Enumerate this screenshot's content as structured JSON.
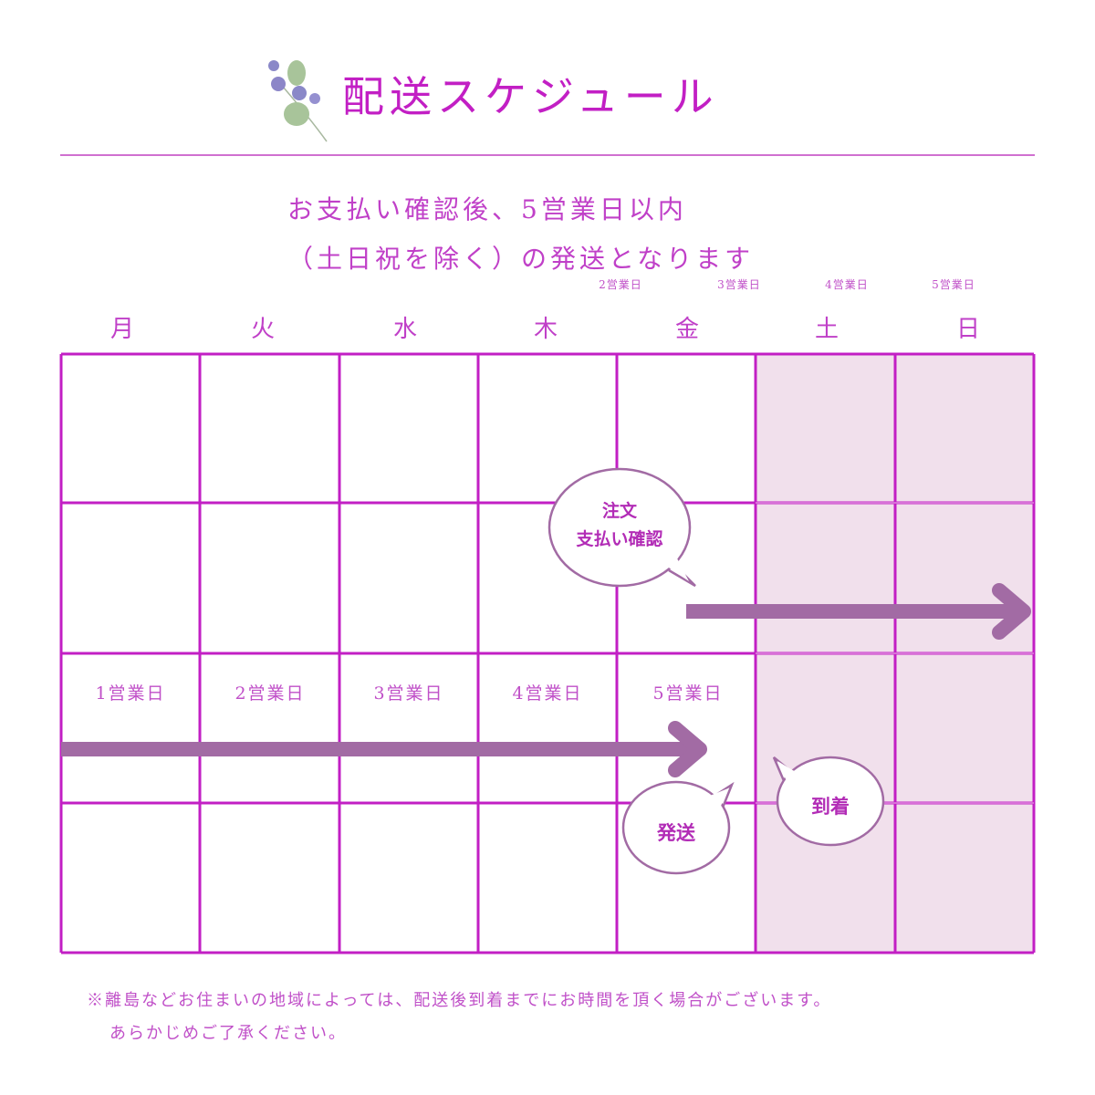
{
  "header": {
    "title": "配送スケジュール",
    "decoration_icon": "violet-flower-icon"
  },
  "subtitle": {
    "line1": "お支払い確認後、5営業日以内",
    "line2": "（土日祝を除く）の発送となります"
  },
  "top_business_days": [
    "2営業日",
    "3営業日",
    "4営業日",
    "5営業日"
  ],
  "weekdays": [
    "月",
    "火",
    "水",
    "木",
    "金",
    "土",
    "日"
  ],
  "row3_business_days": [
    "1営業日",
    "2営業日",
    "3営業日",
    "4営業日",
    "5営業日"
  ],
  "bubbles": {
    "order_line1": "注文",
    "order_line2": "支払い確認",
    "ship": "発送",
    "arrive": "到着"
  },
  "notes": {
    "line1": "※離島などお住まいの地域によっては、配送後到着までにお時間を頂く場合がございます。",
    "line2": "あらかじめご了承ください。"
  },
  "colors": {
    "accent": "#c21fc4",
    "grid": "#c030c8",
    "weekend_fill": "#f1e0ec",
    "arrow": "#a26ba4"
  }
}
